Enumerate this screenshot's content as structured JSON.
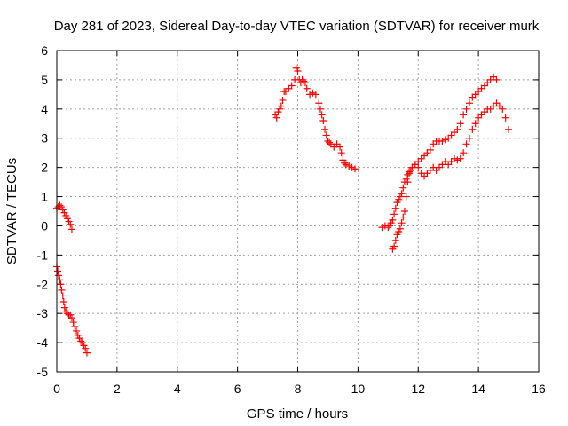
{
  "chart_data": {
    "type": "scatter",
    "title": "Day 281 of 2023, Sidereal Day-to-day VTEC variation (SDTVAR) for receiver murk",
    "xlabel": "GPS time / hours",
    "ylabel": "SDTVAR / TECUs",
    "xlim": [
      0,
      16
    ],
    "ylim": [
      -5,
      6
    ],
    "xticks": [
      "0",
      "2",
      "4",
      "6",
      "8",
      "10",
      "12",
      "14",
      "16"
    ],
    "yticks": [
      "-5",
      "-4",
      "-3",
      "-2",
      "-1",
      "0",
      "1",
      "2",
      "3",
      "4",
      "5",
      "6"
    ],
    "grid": true,
    "marker": "plus",
    "color": "#ff0000",
    "series": [
      {
        "segments": [
          {
            "x": [
              0.0,
              0.05,
              0.1,
              0.15,
              0.2,
              0.25,
              0.3,
              0.35,
              0.4,
              0.45,
              0.5
            ],
            "y": [
              0.6,
              0.65,
              0.7,
              0.65,
              0.55,
              0.45,
              0.35,
              0.25,
              0.15,
              0.05,
              -0.12
            ]
          },
          {
            "x": [
              0.0,
              0.03,
              0.06,
              0.1,
              0.13,
              0.16,
              0.2,
              0.23,
              0.26,
              0.3,
              0.35,
              0.4,
              0.45,
              0.5,
              0.55,
              0.6,
              0.65,
              0.7,
              0.75,
              0.8,
              0.85,
              0.9,
              0.95,
              1.0
            ],
            "y": [
              -1.4,
              -1.55,
              -1.7,
              -1.85,
              -2.0,
              -2.2,
              -2.4,
              -2.6,
              -2.8,
              -2.95,
              -3.0,
              -3.05,
              -3.05,
              -3.15,
              -3.3,
              -3.45,
              -3.6,
              -3.75,
              -3.85,
              -3.95,
              -4.0,
              -4.1,
              -4.2,
              -4.35
            ]
          },
          {
            "x": [
              7.25,
              7.3,
              7.35,
              7.4,
              7.45,
              7.5,
              7.55,
              7.6,
              7.7,
              7.8,
              7.9,
              7.95,
              8.0,
              8.05,
              8.1,
              8.15,
              8.2,
              8.25,
              8.3,
              8.4,
              8.5,
              8.6,
              8.7,
              8.75,
              8.8,
              8.85,
              8.9,
              8.95,
              9.0,
              9.05,
              9.1,
              9.2,
              9.3,
              9.4,
              9.45,
              9.5,
              9.55,
              9.6,
              9.7,
              9.8,
              9.9
            ],
            "y": [
              3.8,
              3.7,
              3.9,
              4.0,
              4.1,
              4.3,
              4.6,
              4.6,
              4.7,
              4.8,
              5.0,
              5.4,
              5.3,
              5.0,
              4.9,
              5.0,
              4.95,
              4.9,
              4.7,
              4.5,
              4.55,
              4.5,
              4.2,
              4.0,
              3.8,
              3.6,
              3.3,
              3.1,
              2.9,
              2.85,
              2.8,
              2.7,
              2.8,
              2.7,
              2.5,
              2.25,
              2.15,
              2.1,
              2.05,
              2.0,
              1.95
            ]
          },
          {
            "x": [
              10.8,
              10.9,
              11.0,
              11.05,
              11.1,
              11.15,
              11.2,
              11.25,
              11.3,
              11.35,
              11.4,
              11.45,
              11.5,
              11.55,
              11.6,
              11.65,
              11.7,
              11.75,
              11.8,
              11.9,
              12.0,
              12.1,
              12.2,
              12.3,
              12.4,
              12.5,
              12.6,
              12.7,
              12.8,
              12.9,
              13.0,
              13.1,
              13.2,
              13.3,
              13.4,
              13.5,
              13.6,
              13.7,
              13.8,
              13.9,
              14.0,
              14.1,
              14.2,
              14.3,
              14.4,
              14.5,
              14.6
            ],
            "y": [
              -0.05,
              0.0,
              -0.05,
              0.0,
              0.1,
              0.2,
              0.4,
              0.6,
              0.8,
              0.9,
              1.0,
              1.1,
              1.3,
              1.5,
              1.6,
              1.75,
              1.85,
              1.9,
              2.0,
              2.1,
              2.2,
              2.3,
              2.4,
              2.5,
              2.6,
              2.8,
              2.9,
              2.9,
              2.9,
              2.95,
              3.0,
              3.1,
              3.2,
              3.3,
              3.5,
              3.8,
              4.0,
              4.2,
              4.4,
              4.5,
              4.6,
              4.7,
              4.8,
              4.9,
              5.0,
              5.1,
              5.0
            ]
          },
          {
            "x": [
              11.15,
              11.2,
              11.25,
              11.3,
              11.35,
              11.4,
              11.45,
              11.5,
              11.55,
              11.6,
              11.65,
              11.7,
              11.8,
              11.9,
              12.0,
              12.1,
              12.2,
              12.3,
              12.4,
              12.5,
              12.6,
              12.7,
              12.8,
              12.9,
              13.0,
              13.1,
              13.2,
              13.3,
              13.4,
              13.5,
              13.6,
              13.7,
              13.8,
              13.9,
              14.0,
              14.1,
              14.2,
              14.3,
              14.4,
              14.5,
              14.6,
              14.7,
              14.8,
              14.9,
              15.0
            ],
            "y": [
              -0.8,
              -0.7,
              -0.5,
              -0.3,
              -0.2,
              -0.1,
              0.1,
              0.3,
              0.5,
              1.0,
              1.5,
              1.8,
              2.0,
              2.1,
              2.0,
              1.8,
              1.7,
              1.8,
              1.9,
              2.0,
              1.9,
              2.0,
              2.1,
              2.2,
              2.1,
              2.2,
              2.3,
              2.25,
              2.3,
              2.5,
              2.8,
              3.0,
              3.3,
              3.5,
              3.7,
              3.8,
              3.9,
              4.0,
              4.0,
              4.1,
              4.2,
              4.1,
              4.0,
              3.7,
              3.3
            ]
          }
        ]
      }
    ]
  }
}
